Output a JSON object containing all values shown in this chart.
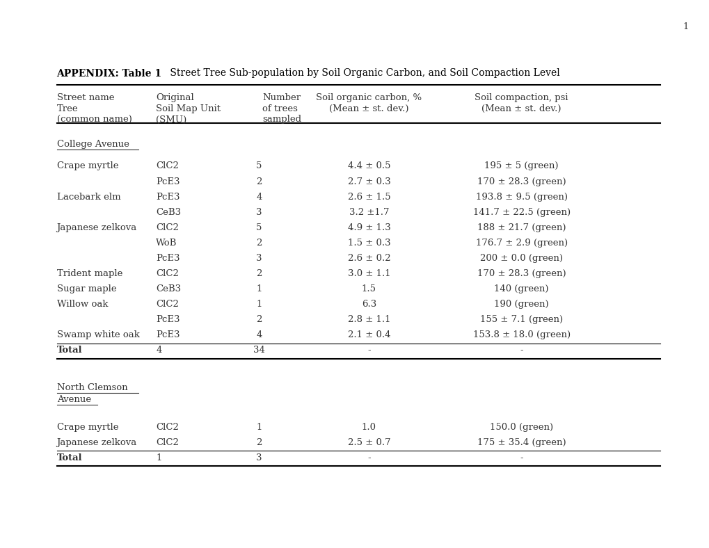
{
  "page_number": "1",
  "title_bold": "APPENDIX: Table 1",
  "title_normal": " Street Tree Sub-population by Soil Organic Carbon, and Soil Compaction Level",
  "col_headers": [
    [
      "Street name",
      "Tree",
      "(common name)"
    ],
    [
      "Original",
      "Soil Map Unit",
      "(SMU)"
    ],
    [
      "Number",
      "of trees",
      "sampled"
    ],
    [
      "Soil organic carbon, %",
      "(Mean ± st. dev.)"
    ],
    [
      "Soil compaction, psi",
      "(Mean ± st. dev.)"
    ]
  ],
  "section1_label": "College Avenue",
  "section1_rows": [
    [
      "Crape myrtle",
      "ClC2",
      "5",
      "4.4 ± 0.5",
      "195 ± 5 (green)"
    ],
    [
      "",
      "PcE3",
      "2",
      "2.7 ± 0.3",
      "170 ± 28.3 (green)"
    ],
    [
      "Lacebark elm",
      "PcE3",
      "4",
      "2.6 ± 1.5",
      "193.8 ± 9.5 (green)"
    ],
    [
      "",
      "CeB3",
      "3",
      "3.2 ±1.7",
      "141.7 ± 22.5 (green)"
    ],
    [
      "Japanese zelkova",
      "ClC2",
      "5",
      "4.9 ± 1.3",
      "188 ± 21.7 (green)"
    ],
    [
      "",
      "WoB",
      "2",
      "1.5 ± 0.3",
      "176.7 ± 2.9 (green)"
    ],
    [
      "",
      "PcE3",
      "3",
      "2.6 ± 0.2",
      "200 ± 0.0 (green)"
    ],
    [
      "Trident maple",
      "ClC2",
      "2",
      "3.0 ± 1.1",
      "170 ± 28.3 (green)"
    ],
    [
      "Sugar maple",
      "CeB3",
      "1",
      "1.5",
      "140 (green)"
    ],
    [
      "Willow oak",
      "ClC2",
      "1",
      "6.3",
      "190 (green)"
    ],
    [
      "",
      "PcE3",
      "2",
      "2.8 ± 1.1",
      "155 ± 7.1 (green)"
    ],
    [
      "Swamp white oak",
      "PcE3",
      "4",
      "2.1 ± 0.4",
      "153.8 ± 18.0 (green)"
    ]
  ],
  "section1_total": [
    "Total",
    "4",
    "34",
    "-",
    "-"
  ],
  "section2_label_line1": "North Clemson",
  "section2_label_line2": "Avenue",
  "section2_rows": [
    [
      "Crape myrtle",
      "ClC2",
      "1",
      "1.0",
      "150.0 (green)"
    ],
    [
      "Japanese zelkova",
      "ClC2",
      "2",
      "2.5 ± 0.7",
      "175 ± 35.4 (green)"
    ]
  ],
  "section2_total": [
    "Total",
    "1",
    "3",
    "-",
    "-"
  ],
  "font_size": 9.5,
  "title_font_size": 10,
  "bg_color": "#ffffff",
  "text_color": "#333333"
}
